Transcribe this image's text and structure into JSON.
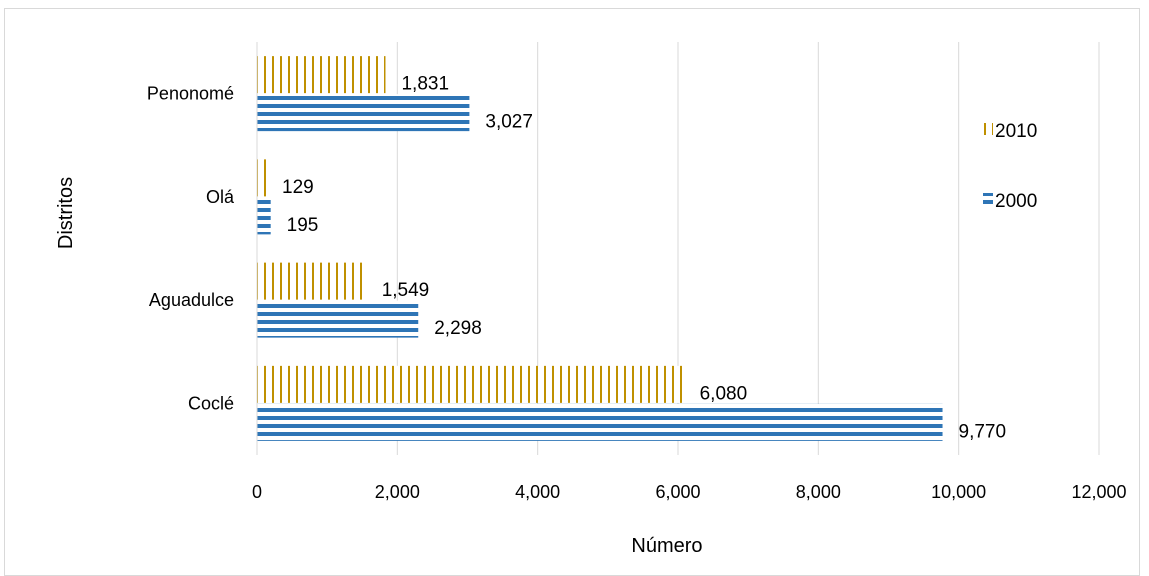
{
  "chart_data": {
    "type": "bar",
    "orientation": "horizontal",
    "categories": [
      "Coclé",
      "Aguadulce",
      "Olá",
      "Penonomé"
    ],
    "series": [
      {
        "name": "2000",
        "values": [
          9770,
          2298,
          195,
          3027
        ],
        "labels": [
          "9,770",
          "2,298",
          "195",
          "3,027"
        ],
        "color": "#2e75b6",
        "pattern": "horizontal-stripes"
      },
      {
        "name": "2010",
        "values": [
          6080,
          1549,
          129,
          1831
        ],
        "labels": [
          "6,080",
          "1,549",
          "129",
          "1,831"
        ],
        "color": "#bf9000",
        "pattern": "vertical-stripes"
      }
    ],
    "xlabel": "Número",
    "ylabel": "Distritos",
    "xlim": [
      0,
      12000
    ],
    "xticks": [
      0,
      2000,
      4000,
      6000,
      8000,
      10000,
      12000
    ],
    "xtick_labels": [
      "0",
      "2,000",
      "4,000",
      "6,000",
      "8,000",
      "10,000",
      "12,000"
    ],
    "grid": "vertical",
    "legend": [
      "2010",
      "2000"
    ],
    "legend_placement": "right"
  }
}
